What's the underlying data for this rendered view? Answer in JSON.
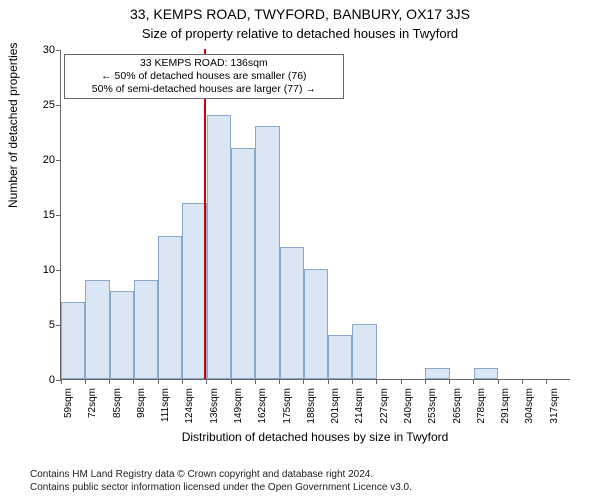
{
  "title_line1": "33, KEMPS ROAD, TWYFORD, BANBURY, OX17 3JS",
  "title_line2": "Size of property relative to detached houses in Twyford",
  "ylabel": "Number of detached properties",
  "xlabel": "Distribution of detached houses by size in Twyford",
  "chart": {
    "type": "histogram",
    "bar_fill": "#dbe6f5",
    "bar_stroke": "#8aa8cc",
    "refline_color": "#cc0000",
    "background_color": "#ffffff",
    "axis_color": "#666666",
    "ylim": [
      0,
      30
    ],
    "ytick_step": 5,
    "yticks": [
      0,
      5,
      10,
      15,
      20,
      25,
      30
    ],
    "x_start": 59,
    "x_step": 13,
    "categories": [
      "59sqm",
      "72sqm",
      "85sqm",
      "98sqm",
      "111sqm",
      "124sqm",
      "136sqm",
      "149sqm",
      "162sqm",
      "175sqm",
      "188sqm",
      "201sqm",
      "214sqm",
      "227sqm",
      "240sqm",
      "253sqm",
      "265sqm",
      "278sqm",
      "291sqm",
      "304sqm",
      "317sqm"
    ],
    "values": [
      7,
      9,
      8,
      9,
      13,
      16,
      24,
      21,
      23,
      12,
      10,
      4,
      5,
      0,
      0,
      1,
      0,
      1,
      0,
      0
    ],
    "reference_x_sqm": 136,
    "bar_width_ratio": 1.0,
    "label_fontsize": 12,
    "tick_fontsize": 10,
    "title_fontsize": 14
  },
  "annotation": {
    "line1": "33 KEMPS ROAD: 136sqm",
    "line2": "← 50% of detached houses are smaller (76)",
    "line3": "50% of semi-detached houses are larger (77) →",
    "border_color": "#666666",
    "background": "#ffffff",
    "fontsize": 10.5
  },
  "footer": {
    "line1": "Contains HM Land Registry data © Crown copyright and database right 2024.",
    "line2": "Contains public sector information licensed under the Open Government Licence v3.0."
  }
}
